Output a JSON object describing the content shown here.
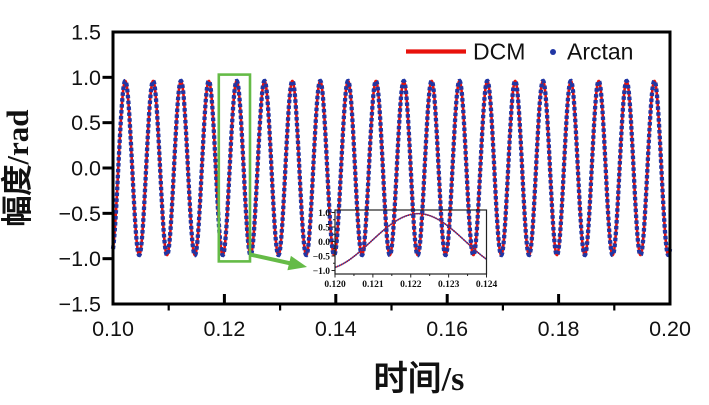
{
  "figure": {
    "legend": {
      "items": [
        {
          "label": "DCM",
          "marker": "line-swatch",
          "color": "#e8120c"
        },
        {
          "label": "Arctan",
          "marker": "dot-swatch",
          "color": "#2136a4"
        }
      ]
    }
  },
  "chart_data": {
    "type": "line",
    "title": "",
    "xlabel": "时间/s",
    "ylabel": "幅度/rad",
    "xlim": [
      0.1,
      0.2
    ],
    "ylim": [
      -1.5,
      1.5
    ],
    "x_ticks": [
      0.1,
      0.12,
      0.14,
      0.16,
      0.18,
      0.2
    ],
    "x_tick_labels": [
      "0.10",
      "0.12",
      "0.14",
      "0.16",
      "0.18",
      "0.20"
    ],
    "x_minor_ticks": [
      0.11,
      0.13,
      0.15,
      0.17,
      0.19
    ],
    "y_ticks": [
      1.5,
      1.0,
      0.5,
      0.0,
      -0.5,
      -1.0,
      -1.5
    ],
    "y_tick_labels": [
      "1.5",
      "1.0",
      "0.5",
      "0.0",
      "-0.5",
      "-1.0",
      "-1.5"
    ],
    "grid": false,
    "legend_position": "top-right-inside",
    "signal": {
      "shape": "sine",
      "amplitude_rad": 0.96,
      "frequency_hz": 200,
      "peak_time_s": 0.1222,
      "formula": "y(t) = 0.96 * cos(2*pi*200*(t - 0.1222))"
    },
    "series": [
      {
        "name": "DCM",
        "style": "solid-line",
        "color": "#e8120c"
      },
      {
        "name": "Arctan",
        "style": "dots",
        "color": "#2136a4"
      }
    ],
    "annotation": {
      "color": "#65bb47",
      "box_t_range": [
        0.119,
        0.1246
      ],
      "box_y_range": [
        -1.03,
        1.03
      ]
    },
    "inset": {
      "xlim": [
        0.12,
        0.124
      ],
      "ylim": [
        -1.0,
        1.0
      ],
      "x_ticks": [
        0.12,
        0.121,
        0.122,
        0.123,
        0.124
      ],
      "x_tick_labels": [
        "0.120",
        "0.121",
        "0.122",
        "0.123",
        "0.124"
      ],
      "x_minor_ticks": [
        0.1205,
        0.1215,
        0.1225,
        0.1235
      ],
      "y_ticks": [
        1.0,
        0.5,
        0.0,
        -0.5,
        -1.0
      ],
      "y_tick_labels": [
        "1.0",
        "0.5",
        "0.0",
        "-0.5",
        "-1.0"
      ],
      "y_minor_ticks": [
        0.75,
        0.25,
        -0.25,
        -0.75
      ]
    }
  }
}
